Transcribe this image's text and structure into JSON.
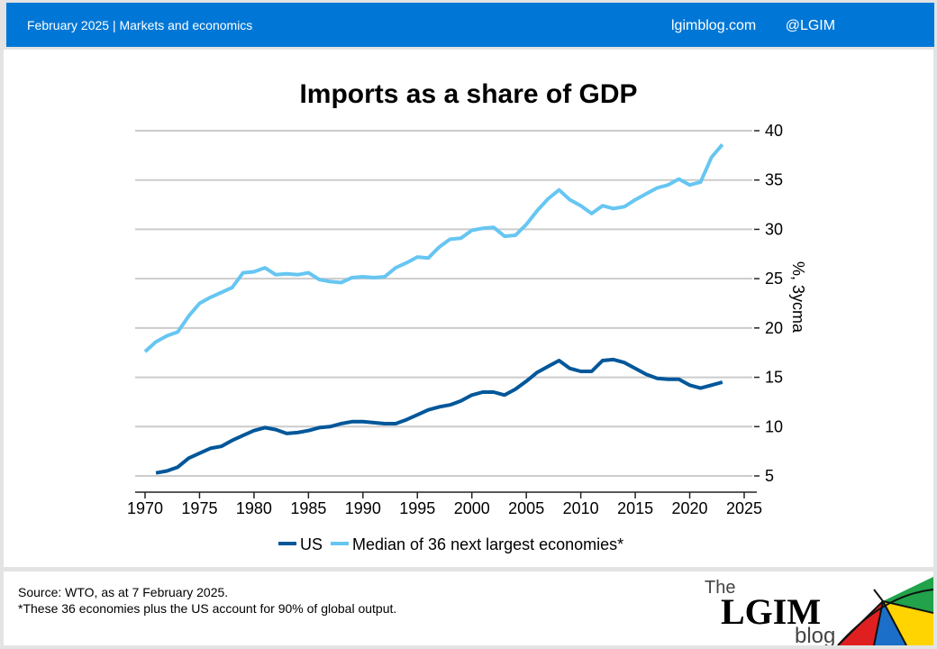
{
  "header": {
    "date_section": "February 2025 |  Markets and economics",
    "site": "lgimblog.com",
    "handle": "@LGIM"
  },
  "footer": {
    "source": "Source: WTO, as at 7 February 2025.",
    "note": "*These 36 economies plus the US account for 90% of global output.",
    "logo_the": "The",
    "logo_lgim": "LGIM",
    "logo_blog": "blog"
  },
  "chart_data": {
    "type": "line",
    "title": "Imports as a share of GDP",
    "xlabel": "",
    "ylabel": "%, 3ycma",
    "xlim": [
      1969,
      2026
    ],
    "ylim": [
      4,
      41
    ],
    "x_ticks": [
      1970,
      1975,
      1980,
      1985,
      1990,
      1995,
      2000,
      2005,
      2010,
      2015,
      2020,
      2025
    ],
    "y_ticks": [
      5,
      10,
      15,
      20,
      25,
      30,
      35,
      40
    ],
    "y_axis_side": "right",
    "grid": "horizontal",
    "legend_position": "bottom",
    "series": [
      {
        "name": "US",
        "color": "#00579a",
        "x": [
          1971,
          1972,
          1973,
          1974,
          1975,
          1976,
          1977,
          1978,
          1979,
          1980,
          1981,
          1982,
          1983,
          1984,
          1985,
          1986,
          1987,
          1988,
          1989,
          1990,
          1991,
          1992,
          1993,
          1994,
          1995,
          1996,
          1997,
          1998,
          1999,
          2000,
          2001,
          2002,
          2003,
          2004,
          2005,
          2006,
          2007,
          2008,
          2009,
          2010,
          2011,
          2012,
          2013,
          2014,
          2015,
          2016,
          2017,
          2018,
          2019,
          2020,
          2021,
          2022,
          2023
        ],
        "values": [
          5.3,
          5.5,
          5.9,
          6.8,
          7.3,
          7.8,
          8.0,
          8.6,
          9.1,
          9.6,
          9.9,
          9.7,
          9.3,
          9.4,
          9.6,
          9.9,
          10.0,
          10.3,
          10.5,
          10.5,
          10.4,
          10.3,
          10.3,
          10.7,
          11.2,
          11.7,
          12.0,
          12.2,
          12.6,
          13.2,
          13.5,
          13.5,
          13.2,
          13.8,
          14.6,
          15.5,
          16.1,
          16.7,
          15.9,
          15.6,
          15.6,
          16.7,
          16.8,
          16.5,
          15.9,
          15.3,
          14.9,
          14.8,
          14.8,
          14.2,
          13.9,
          14.2,
          14.5
        ]
      },
      {
        "name": "Median of 36 next largest economies*",
        "color": "#66c6f2",
        "x": [
          1970,
          1971,
          1972,
          1973,
          1974,
          1975,
          1976,
          1977,
          1978,
          1979,
          1980,
          1981,
          1982,
          1983,
          1984,
          1985,
          1986,
          1987,
          1988,
          1989,
          1990,
          1991,
          1992,
          1993,
          1994,
          1995,
          1996,
          1997,
          1998,
          1999,
          2000,
          2001,
          2002,
          2003,
          2004,
          2005,
          2006,
          2007,
          2008,
          2009,
          2010,
          2011,
          2012,
          2013,
          2014,
          2015,
          2016,
          2017,
          2018,
          2019,
          2020,
          2021,
          2022,
          2023
        ],
        "values": [
          17.6,
          18.6,
          19.2,
          19.6,
          21.2,
          22.5,
          23.1,
          23.6,
          24.1,
          25.6,
          25.7,
          26.1,
          25.4,
          25.5,
          25.4,
          25.6,
          24.9,
          24.7,
          24.6,
          25.1,
          25.2,
          25.1,
          25.2,
          26.1,
          26.6,
          27.2,
          27.1,
          28.2,
          29.0,
          29.1,
          29.9,
          30.1,
          30.2,
          29.3,
          29.4,
          30.5,
          31.9,
          33.1,
          34.0,
          33.0,
          32.4,
          31.6,
          32.4,
          32.1,
          32.3,
          33.0,
          33.6,
          34.2,
          34.5,
          35.1,
          34.5,
          34.8,
          37.3,
          38.6
        ]
      }
    ]
  }
}
